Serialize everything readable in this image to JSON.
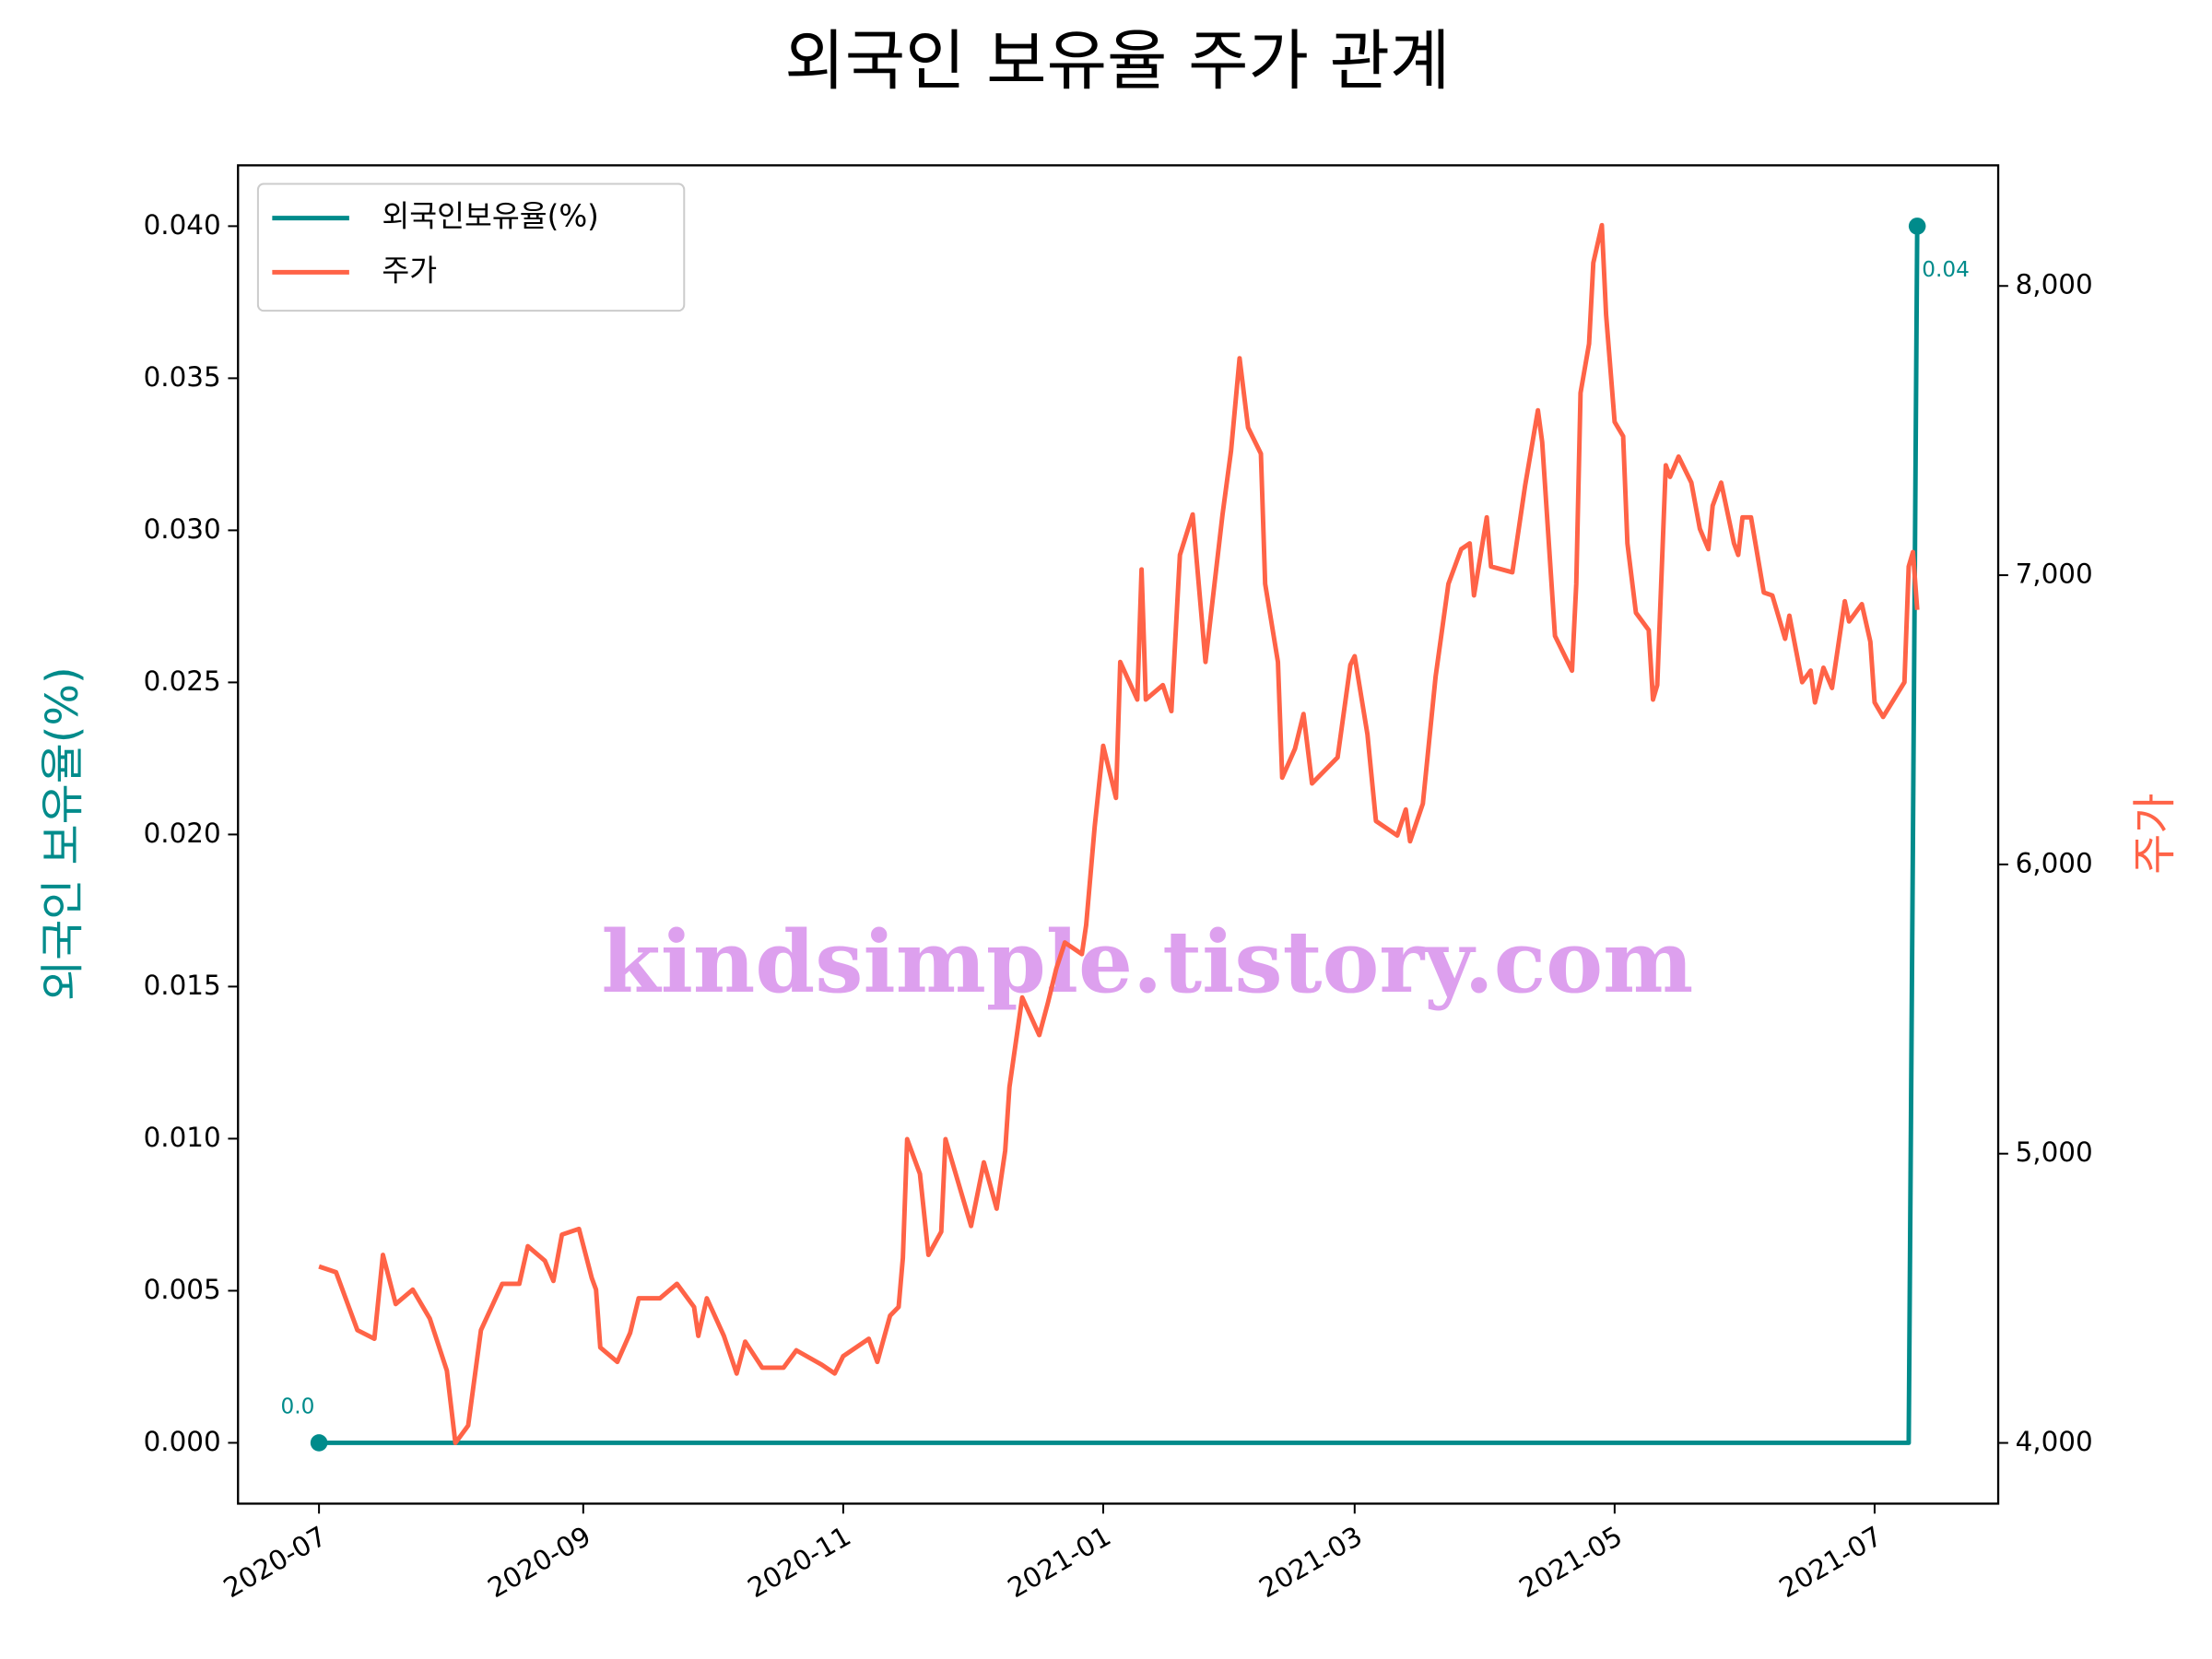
{
  "chart_data": {
    "type": "line",
    "title": "외국인 보유율 주가 관계",
    "ylabel": "외국인 보유율(%)",
    "y2label": "주가",
    "ylabel_color": "#008b8b",
    "y2label_color": "#ff6347",
    "watermark": "kindsimple.tistory.com",
    "legend": "upper left",
    "xlim": [
      "2020-06-12",
      "2021-07-30"
    ],
    "xticks": [
      "2020-07",
      "2020-09",
      "2020-11",
      "2021-01",
      "2021-03",
      "2021-05",
      "2021-07"
    ],
    "ylim": [
      -0.002,
      0.042
    ],
    "yticks": [
      {
        "value": 0,
        "label": "0.000"
      },
      {
        "value": 0.005,
        "label": "0.005"
      },
      {
        "value": 0.01,
        "label": "0.010"
      },
      {
        "value": 0.015,
        "label": "0.015"
      },
      {
        "value": 0.02,
        "label": "0.020"
      },
      {
        "value": 0.025,
        "label": "0.025"
      },
      {
        "value": 0.03,
        "label": "0.030"
      },
      {
        "value": 0.035,
        "label": "0.035"
      },
      {
        "value": 0.04,
        "label": "0.040"
      }
    ],
    "y2lim": [
      3790,
      8417
    ],
    "y2ticks": [
      {
        "value": 4000,
        "label": "4,000"
      },
      {
        "value": 5000,
        "label": "5,000"
      },
      {
        "value": 6000,
        "label": "6,000"
      },
      {
        "value": 7000,
        "label": "7,000"
      },
      {
        "value": 8000,
        "label": "8,000"
      }
    ],
    "series": [
      {
        "name": "외국인보유율(%)",
        "color": "#008b8b",
        "x": [
          "2020-07-01",
          "2021-07-09",
          "2021-07-11"
        ],
        "values": [
          0,
          0,
          0.04
        ],
        "value_labels": [
          "0.0",
          null,
          "0.04"
        ]
      },
      {
        "name": "주가",
        "color": "#ff6347",
        "axis": "y2",
        "x": [
          "2020-07-01",
          "2020-07-05",
          "2020-07-10",
          "2020-07-14",
          "2020-07-16",
          "2020-07-19",
          "2020-07-23",
          "2020-07-27",
          "2020-07-31",
          "2020-08-02",
          "2020-08-05",
          "2020-08-08",
          "2020-08-13",
          "2020-08-17",
          "2020-08-19",
          "2020-08-23",
          "2020-08-25",
          "2020-08-27",
          "2020-08-31",
          "2020-09-03",
          "2020-09-04",
          "2020-09-05",
          "2020-09-09",
          "2020-09-12",
          "2020-09-14",
          "2020-09-19",
          "2020-09-23",
          "2020-09-27",
          "2020-09-28",
          "2020-09-30",
          "2020-10-04",
          "2020-10-07",
          "2020-10-09",
          "2020-10-13",
          "2020-10-18",
          "2020-10-21",
          "2020-10-27",
          "2020-10-30",
          "2020-11-01",
          "2020-11-07",
          "2020-11-09",
          "2020-11-12",
          "2020-11-14",
          "2020-11-15",
          "2020-11-16",
          "2020-11-19",
          "2020-11-21",
          "2020-11-24",
          "2020-11-25",
          "2020-12-01",
          "2020-12-04",
          "2020-12-07",
          "2020-12-09",
          "2020-12-10",
          "2020-12-13",
          "2020-12-17",
          "2020-12-19",
          "2020-12-21",
          "2020-12-23",
          "2020-12-27",
          "2020-12-28",
          "2020-12-30",
          "2021-01-01",
          "2021-01-04",
          "2021-01-05",
          "2021-01-09",
          "2021-01-10",
          "2021-01-11",
          "2021-01-15",
          "2021-01-17",
          "2021-01-19",
          "2021-01-22",
          "2021-01-25",
          "2021-01-29",
          "2021-01-31",
          "2021-02-02",
          "2021-02-04",
          "2021-02-07",
          "2021-02-08",
          "2021-02-11",
          "2021-02-12",
          "2021-02-15",
          "2021-02-17",
          "2021-02-19",
          "2021-02-25",
          "2021-02-28",
          "2021-03-01",
          "2021-03-04",
          "2021-03-06",
          "2021-03-11",
          "2021-03-13",
          "2021-03-14",
          "2021-03-17",
          "2021-03-20",
          "2021-03-23",
          "2021-03-26",
          "2021-03-28",
          "2021-03-29",
          "2021-04-01",
          "2021-04-02",
          "2021-04-07",
          "2021-04-10",
          "2021-04-13",
          "2021-04-14",
          "2021-04-17",
          "2021-04-21",
          "2021-04-22",
          "2021-04-23",
          "2021-04-25",
          "2021-04-26",
          "2021-04-28",
          "2021-04-29",
          "2021-05-01",
          "2021-05-03",
          "2021-05-04",
          "2021-05-06",
          "2021-05-09",
          "2021-05-10",
          "2021-05-11",
          "2021-05-13",
          "2021-05-14",
          "2021-05-16",
          "2021-05-19",
          "2021-05-21",
          "2021-05-23",
          "2021-05-24",
          "2021-05-26",
          "2021-05-27",
          "2021-05-29",
          "2021-05-30",
          "2021-05-31",
          "2021-06-02",
          "2021-06-05",
          "2021-06-07",
          "2021-06-10",
          "2021-06-11",
          "2021-06-14",
          "2021-06-16",
          "2021-06-17",
          "2021-06-19",
          "2021-06-21",
          "2021-06-24",
          "2021-06-25",
          "2021-06-28",
          "2021-06-30",
          "2021-07-01",
          "2021-07-03",
          "2021-07-08",
          "2021-07-09",
          "2021-07-10",
          "2021-07-11"
        ],
        "values": [
          4610,
          4590,
          4390,
          4360,
          4650,
          4480,
          4530,
          4430,
          4250,
          4000,
          4060,
          4390,
          4550,
          4550,
          4680,
          4630,
          4560,
          4720,
          4740,
          4570,
          4530,
          4330,
          4280,
          4380,
          4500,
          4500,
          4550,
          4470,
          4370,
          4500,
          4370,
          4240,
          4350,
          4260,
          4260,
          4320,
          4270,
          4240,
          4300,
          4360,
          4280,
          4440,
          4470,
          4640,
          5050,
          4930,
          4650,
          4730,
          5050,
          4750,
          4970,
          4810,
          5010,
          5230,
          5540,
          5410,
          5520,
          5640,
          5730,
          5690,
          5790,
          6130,
          6410,
          6230,
          6700,
          6570,
          7020,
          6570,
          6620,
          6530,
          7070,
          7210,
          6700,
          7210,
          7430,
          7750,
          7510,
          7420,
          6970,
          6700,
          6300,
          6400,
          6520,
          6280,
          6370,
          6690,
          6720,
          6450,
          6150,
          6100,
          6190,
          6080,
          6210,
          6650,
          6970,
          7090,
          7110,
          6930,
          7200,
          7030,
          7010,
          7310,
          7570,
          7460,
          6790,
          6670,
          6970,
          7630,
          7800,
          8080,
          8210,
          7900,
          7530,
          7480,
          7110,
          6870,
          6810,
          6570,
          6620,
          7380,
          7340,
          7410,
          7320,
          7160,
          7090,
          7240,
          7320,
          7250,
          7110,
          7070,
          7200,
          7200,
          6940,
          6930,
          6780,
          6860,
          6630,
          6670,
          6560,
          6680,
          6610,
          6910,
          6840,
          6900,
          6770,
          6560,
          6510,
          6630,
          7030,
          7080,
          6880
        ]
      }
    ]
  }
}
